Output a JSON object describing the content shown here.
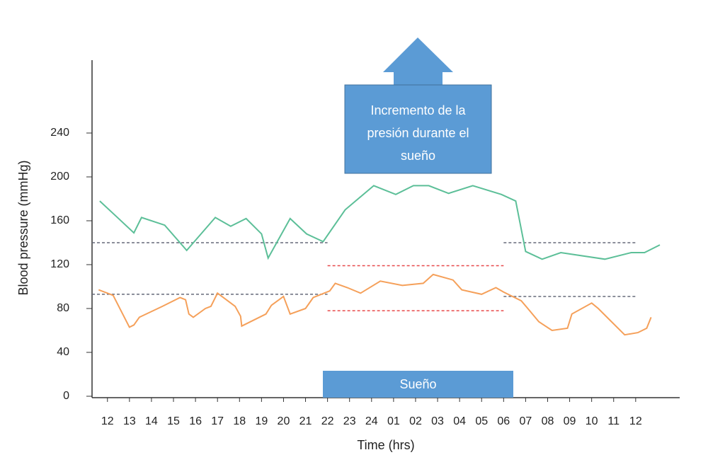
{
  "chart_data": {
    "type": "line",
    "x_label": "Time (hrs)",
    "y_label": "Blood pressure (mmHg)",
    "xlim": [
      -0.7,
      26
    ],
    "ylim": [
      0,
      300
    ],
    "yticks": [
      0,
      40,
      80,
      120,
      160,
      200,
      240
    ],
    "xticks": [
      {
        "value": 0,
        "label": "12"
      },
      {
        "value": 1,
        "label": "13"
      },
      {
        "value": 2,
        "label": "14"
      },
      {
        "value": 3,
        "label": "15"
      },
      {
        "value": 4,
        "label": "16"
      },
      {
        "value": 5,
        "label": "17"
      },
      {
        "value": 6,
        "label": "18"
      },
      {
        "value": 7,
        "label": "19"
      },
      {
        "value": 8,
        "label": "20"
      },
      {
        "value": 9,
        "label": "21"
      },
      {
        "value": 10,
        "label": "22"
      },
      {
        "value": 11,
        "label": "23"
      },
      {
        "value": 12,
        "label": "24"
      },
      {
        "value": 13,
        "label": "01"
      },
      {
        "value": 14,
        "label": "02"
      },
      {
        "value": 15,
        "label": "03"
      },
      {
        "value": 16,
        "label": "04"
      },
      {
        "value": 17,
        "label": "05"
      },
      {
        "value": 18,
        "label": "06"
      },
      {
        "value": 19,
        "label": "07"
      },
      {
        "value": 20,
        "label": "08"
      },
      {
        "value": 21,
        "label": "09"
      },
      {
        "value": 22,
        "label": "10"
      },
      {
        "value": 23,
        "label": "11"
      },
      {
        "value": 24,
        "label": "12"
      }
    ],
    "series": [
      {
        "color": "#5cbf98",
        "x": [
          -0.35,
          0.35,
          1.2,
          1.55,
          2.6,
          3.6,
          4.9,
          5.6,
          6.3,
          7.0,
          7.3,
          8.3,
          9.05,
          9.8,
          10.8,
          12.1,
          13.1,
          13.9,
          14.6,
          15.5,
          16.6,
          17.9,
          18.55,
          19.0,
          19.75,
          20.6,
          22.6,
          23.8,
          24.4,
          25.1
        ],
        "values": [
          178,
          165,
          149,
          163,
          156,
          133,
          163,
          155,
          162,
          148,
          126,
          162,
          148,
          141,
          170,
          192,
          184,
          192,
          192,
          185,
          192,
          184,
          178,
          132,
          125,
          131,
          125,
          131,
          131,
          138
        ]
      },
      {
        "color": "#f5a05a",
        "x": [
          -0.4,
          0.26,
          1.0,
          1.2,
          1.45,
          2.5,
          3.3,
          3.55,
          3.7,
          3.9,
          4.45,
          4.7,
          5.0,
          5.4,
          5.8,
          6.05,
          6.1,
          7.2,
          7.45,
          8.0,
          8.3,
          9.0,
          9.35,
          10.1,
          10.35,
          10.9,
          11.5,
          12.4,
          13.4,
          14.35,
          14.8,
          15.7,
          16.1,
          17.0,
          17.65,
          18.0,
          18.8,
          19.1,
          19.6,
          20.2,
          20.9,
          21.1,
          22.0,
          22.3,
          22.8,
          23.5,
          24.1,
          24.5,
          24.7
        ],
        "values": [
          97,
          92,
          63,
          65,
          72,
          82,
          90,
          88,
          75,
          72,
          80,
          82,
          94,
          88,
          82,
          73,
          64,
          75,
          83,
          91,
          75,
          80,
          90,
          96,
          103,
          99,
          94,
          105,
          101,
          103,
          111,
          106,
          97,
          93,
          99,
          95,
          87,
          80,
          68,
          60,
          62,
          75,
          85,
          80,
          70,
          56,
          58,
          62,
          72
        ]
      }
    ],
    "reference_lines": [
      {
        "y": 140,
        "x": [
          -0.7,
          10.0
        ],
        "color": "#666a7a"
      },
      {
        "y": 93,
        "x": [
          -0.7,
          10.0
        ],
        "color": "#666a7a"
      },
      {
        "y": 140,
        "x": [
          18.0,
          24.0
        ],
        "color": "#666a7a"
      },
      {
        "y": 91,
        "x": [
          18.0,
          24.0
        ],
        "color": "#666a7a"
      },
      {
        "y": 119,
        "x": [
          10.0,
          18.0
        ],
        "color": "#e8494a"
      },
      {
        "y": 78,
        "x": [
          10.0,
          18.0
        ],
        "color": "#e8494a"
      }
    ],
    "annotations": [
      {
        "text": "Incremento de la presión durante el sueño"
      },
      {
        "text": "Sueño"
      }
    ]
  }
}
